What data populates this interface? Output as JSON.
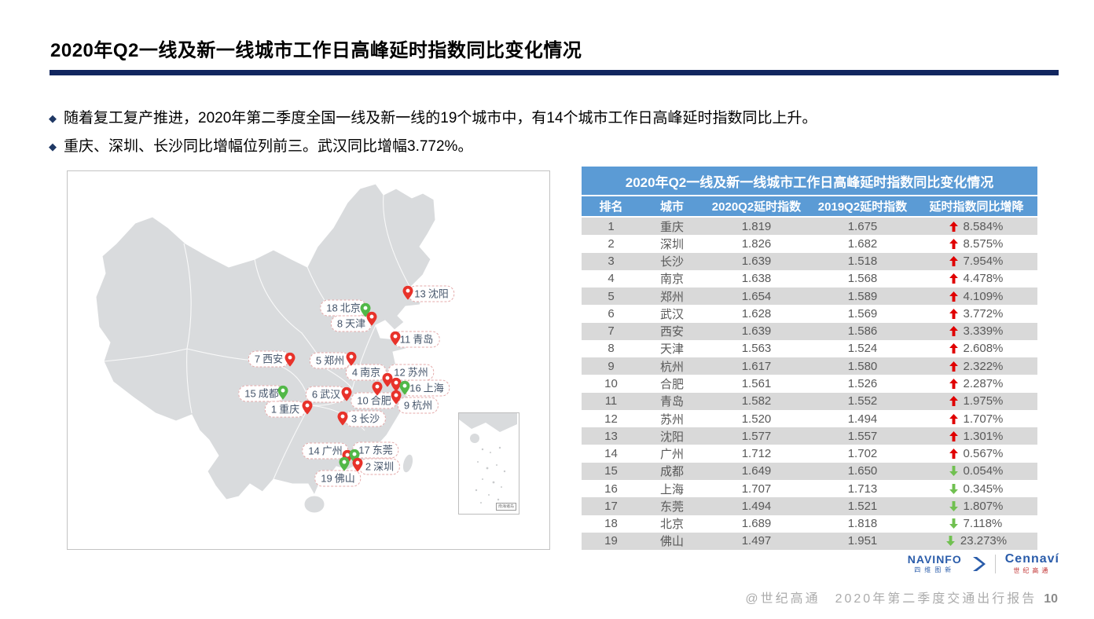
{
  "header": {
    "title": "2020年Q2一线及新一线城市工作日高峰延时指数同比变化情况",
    "underline_color": "#12265f"
  },
  "bullets": [
    "随着复工复产推进，2020年第二季度全国一线及新一线的19个城市中，有14个城市工作日高峰延时指数同比上升。",
    "重庆、深圳、长沙同比增幅位列前三。武汉同比增幅3.772%。"
  ],
  "map": {
    "inset_label": "南海诸岛",
    "pin_colors": {
      "up": "#e8322a",
      "down": "#52b848"
    },
    "markers": [
      {
        "rank": "13",
        "name": "沈阳",
        "trend": "up",
        "pin": [
          433,
          154
        ],
        "label": [
          463,
          156
        ]
      },
      {
        "rank": "18",
        "name": "北京",
        "trend": "down",
        "pin": [
          379,
          176
        ],
        "label": [
          351,
          174
        ]
      },
      {
        "rank": "8",
        "name": "天津",
        "trend": "up",
        "pin": [
          387,
          187
        ],
        "label": [
          361,
          194
        ]
      },
      {
        "rank": "11",
        "name": "青岛",
        "trend": "up",
        "pin": [
          417,
          212
        ],
        "label": [
          444,
          214
        ]
      },
      {
        "rank": "7",
        "name": "西安",
        "trend": "up",
        "pin": [
          283,
          239
        ],
        "label": [
          256,
          239
        ]
      },
      {
        "rank": "5",
        "name": "郑州",
        "trend": "up",
        "pin": [
          361,
          238
        ],
        "label": [
          334,
          241
        ]
      },
      {
        "rank": "4",
        "name": "南京",
        "trend": "up",
        "pin": [
          407,
          265
        ],
        "label": [
          380,
          256
        ]
      },
      {
        "rank": "12",
        "name": "苏州",
        "trend": "up",
        "pin": [
          418,
          271
        ],
        "label": [
          437,
          256
        ]
      },
      {
        "rank": "16",
        "name": "上海",
        "trend": "down",
        "pin": [
          429,
          275
        ],
        "label": [
          457,
          276
        ]
      },
      {
        "rank": "15",
        "name": "成都",
        "trend": "down",
        "pin": [
          274,
          281
        ],
        "label": [
          247,
          283
        ]
      },
      {
        "rank": "6",
        "name": "武汉",
        "trend": "up",
        "pin": [
          355,
          283
        ],
        "label": [
          329,
          284
        ]
      },
      {
        "rank": "10",
        "name": "合肥",
        "trend": "up",
        "pin": [
          394,
          276
        ],
        "label": [
          390,
          292
        ]
      },
      {
        "rank": "9",
        "name": "杭州",
        "trend": "up",
        "pin": [
          418,
          287
        ],
        "label": [
          446,
          298
        ]
      },
      {
        "rank": "1",
        "name": "重庆",
        "trend": "up",
        "pin": [
          305,
          300
        ],
        "label": [
          277,
          303
        ]
      },
      {
        "rank": "3",
        "name": "长沙",
        "trend": "up",
        "pin": [
          350,
          314
        ],
        "label": [
          379,
          315
        ]
      },
      {
        "rank": "14",
        "name": "广州",
        "trend": "up",
        "pin": [
          356,
          363
        ],
        "label": [
          328,
          356
        ]
      },
      {
        "rank": "17",
        "name": "东莞",
        "trend": "down",
        "pin": [
          365,
          362
        ],
        "label": [
          392,
          355
        ]
      },
      {
        "rank": "2",
        "name": "深圳",
        "trend": "up",
        "pin": [
          369,
          373
        ],
        "label": [
          397,
          376
        ]
      },
      {
        "rank": "19",
        "name": "佛山",
        "trend": "down",
        "pin": [
          352,
          372
        ],
        "label": [
          344,
          391
        ]
      }
    ]
  },
  "table": {
    "title": "2020年Q2一线及新一线城市工作日高峰延时指数同比变化情况",
    "columns": [
      "排名",
      "城市",
      "2020Q2延时指数",
      "2019Q2延时指数",
      "延时指数同比增降"
    ],
    "header_bg": "#5b9bd5",
    "stripe_bg": "#d9d9d9",
    "up_color": "#e00000",
    "down_color": "#70c050",
    "rows": [
      {
        "rank": "1",
        "city": "重庆",
        "q2020": "1.819",
        "q2019": "1.675",
        "change": "8.584%",
        "trend": "up"
      },
      {
        "rank": "2",
        "city": "深圳",
        "q2020": "1.826",
        "q2019": "1.682",
        "change": "8.575%",
        "trend": "up"
      },
      {
        "rank": "3",
        "city": "长沙",
        "q2020": "1.639",
        "q2019": "1.518",
        "change": "7.954%",
        "trend": "up"
      },
      {
        "rank": "4",
        "city": "南京",
        "q2020": "1.638",
        "q2019": "1.568",
        "change": "4.478%",
        "trend": "up"
      },
      {
        "rank": "5",
        "city": "郑州",
        "q2020": "1.654",
        "q2019": "1.589",
        "change": "4.109%",
        "trend": "up"
      },
      {
        "rank": "6",
        "city": "武汉",
        "q2020": "1.628",
        "q2019": "1.569",
        "change": "3.772%",
        "trend": "up"
      },
      {
        "rank": "7",
        "city": "西安",
        "q2020": "1.639",
        "q2019": "1.586",
        "change": "3.339%",
        "trend": "up"
      },
      {
        "rank": "8",
        "city": "天津",
        "q2020": "1.563",
        "q2019": "1.524",
        "change": "2.608%",
        "trend": "up"
      },
      {
        "rank": "9",
        "city": "杭州",
        "q2020": "1.617",
        "q2019": "1.580",
        "change": "2.322%",
        "trend": "up"
      },
      {
        "rank": "10",
        "city": "合肥",
        "q2020": "1.561",
        "q2019": "1.526",
        "change": "2.287%",
        "trend": "up"
      },
      {
        "rank": "11",
        "city": "青岛",
        "q2020": "1.582",
        "q2019": "1.552",
        "change": "1.975%",
        "trend": "up"
      },
      {
        "rank": "12",
        "city": "苏州",
        "q2020": "1.520",
        "q2019": "1.494",
        "change": "1.707%",
        "trend": "up"
      },
      {
        "rank": "13",
        "city": "沈阳",
        "q2020": "1.577",
        "q2019": "1.557",
        "change": "1.301%",
        "trend": "up"
      },
      {
        "rank": "14",
        "city": "广州",
        "q2020": "1.712",
        "q2019": "1.702",
        "change": "0.567%",
        "trend": "up"
      },
      {
        "rank": "15",
        "city": "成都",
        "q2020": "1.649",
        "q2019": "1.650",
        "change": "0.054%",
        "trend": "down"
      },
      {
        "rank": "16",
        "city": "上海",
        "q2020": "1.707",
        "q2019": "1.713",
        "change": "0.345%",
        "trend": "down"
      },
      {
        "rank": "17",
        "city": "东莞",
        "q2020": "1.494",
        "q2019": "1.521",
        "change": "1.807%",
        "trend": "down"
      },
      {
        "rank": "18",
        "city": "北京",
        "q2020": "1.689",
        "q2019": "1.818",
        "change": "7.118%",
        "trend": "down"
      },
      {
        "rank": "19",
        "city": "佛山",
        "q2020": "1.497",
        "q2019": "1.951",
        "change": "23.273%",
        "trend": "down"
      }
    ]
  },
  "footer": {
    "brand1": "NAVINFO",
    "brand1_sub": "四维图新",
    "brand2": "Cennaví",
    "brand2_sub": "世纪高通",
    "page_text": "@世纪高通　2020年第二季度交通出行报告",
    "page_number": "10"
  }
}
